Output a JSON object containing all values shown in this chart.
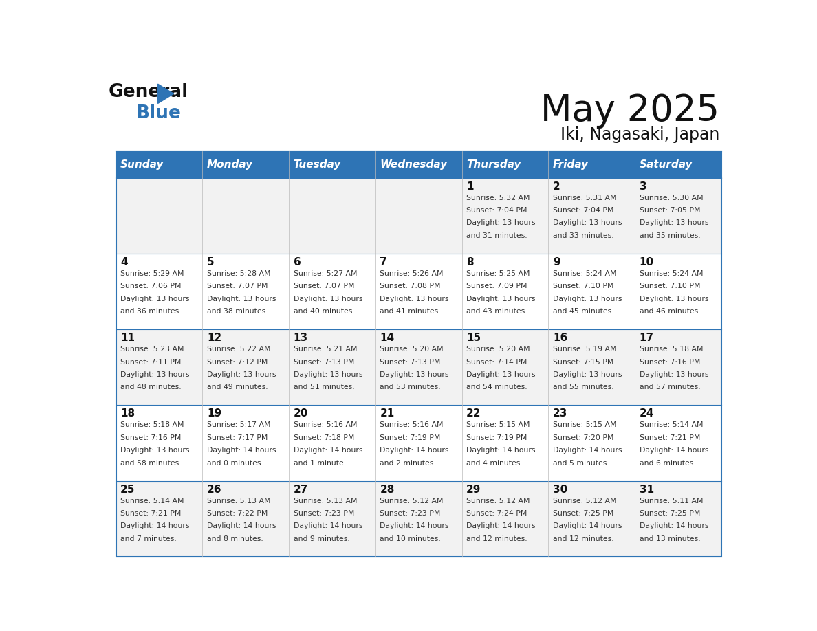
{
  "title": "May 2025",
  "subtitle": "Iki, Nagasaki, Japan",
  "header_bg": "#2E74B5",
  "header_text_color": "#FFFFFF",
  "cell_bg_even": "#F2F2F2",
  "cell_bg_odd": "#FFFFFF",
  "border_color": "#2E74B5",
  "row_line_color": "#2E74B5",
  "text_color": "#333333",
  "days_of_week": [
    "Sunday",
    "Monday",
    "Tuesday",
    "Wednesday",
    "Thursday",
    "Friday",
    "Saturday"
  ],
  "calendar_data": [
    [
      {
        "day": "",
        "sunrise": "",
        "sunset": "",
        "daylight": ""
      },
      {
        "day": "",
        "sunrise": "",
        "sunset": "",
        "daylight": ""
      },
      {
        "day": "",
        "sunrise": "",
        "sunset": "",
        "daylight": ""
      },
      {
        "day": "",
        "sunrise": "",
        "sunset": "",
        "daylight": ""
      },
      {
        "day": "1",
        "sunrise": "Sunrise: 5:32 AM",
        "sunset": "Sunset: 7:04 PM",
        "daylight": "Daylight: 13 hours\nand 31 minutes."
      },
      {
        "day": "2",
        "sunrise": "Sunrise: 5:31 AM",
        "sunset": "Sunset: 7:04 PM",
        "daylight": "Daylight: 13 hours\nand 33 minutes."
      },
      {
        "day": "3",
        "sunrise": "Sunrise: 5:30 AM",
        "sunset": "Sunset: 7:05 PM",
        "daylight": "Daylight: 13 hours\nand 35 minutes."
      }
    ],
    [
      {
        "day": "4",
        "sunrise": "Sunrise: 5:29 AM",
        "sunset": "Sunset: 7:06 PM",
        "daylight": "Daylight: 13 hours\nand 36 minutes."
      },
      {
        "day": "5",
        "sunrise": "Sunrise: 5:28 AM",
        "sunset": "Sunset: 7:07 PM",
        "daylight": "Daylight: 13 hours\nand 38 minutes."
      },
      {
        "day": "6",
        "sunrise": "Sunrise: 5:27 AM",
        "sunset": "Sunset: 7:07 PM",
        "daylight": "Daylight: 13 hours\nand 40 minutes."
      },
      {
        "day": "7",
        "sunrise": "Sunrise: 5:26 AM",
        "sunset": "Sunset: 7:08 PM",
        "daylight": "Daylight: 13 hours\nand 41 minutes."
      },
      {
        "day": "8",
        "sunrise": "Sunrise: 5:25 AM",
        "sunset": "Sunset: 7:09 PM",
        "daylight": "Daylight: 13 hours\nand 43 minutes."
      },
      {
        "day": "9",
        "sunrise": "Sunrise: 5:24 AM",
        "sunset": "Sunset: 7:10 PM",
        "daylight": "Daylight: 13 hours\nand 45 minutes."
      },
      {
        "day": "10",
        "sunrise": "Sunrise: 5:24 AM",
        "sunset": "Sunset: 7:10 PM",
        "daylight": "Daylight: 13 hours\nand 46 minutes."
      }
    ],
    [
      {
        "day": "11",
        "sunrise": "Sunrise: 5:23 AM",
        "sunset": "Sunset: 7:11 PM",
        "daylight": "Daylight: 13 hours\nand 48 minutes."
      },
      {
        "day": "12",
        "sunrise": "Sunrise: 5:22 AM",
        "sunset": "Sunset: 7:12 PM",
        "daylight": "Daylight: 13 hours\nand 49 minutes."
      },
      {
        "day": "13",
        "sunrise": "Sunrise: 5:21 AM",
        "sunset": "Sunset: 7:13 PM",
        "daylight": "Daylight: 13 hours\nand 51 minutes."
      },
      {
        "day": "14",
        "sunrise": "Sunrise: 5:20 AM",
        "sunset": "Sunset: 7:13 PM",
        "daylight": "Daylight: 13 hours\nand 53 minutes."
      },
      {
        "day": "15",
        "sunrise": "Sunrise: 5:20 AM",
        "sunset": "Sunset: 7:14 PM",
        "daylight": "Daylight: 13 hours\nand 54 minutes."
      },
      {
        "day": "16",
        "sunrise": "Sunrise: 5:19 AM",
        "sunset": "Sunset: 7:15 PM",
        "daylight": "Daylight: 13 hours\nand 55 minutes."
      },
      {
        "day": "17",
        "sunrise": "Sunrise: 5:18 AM",
        "sunset": "Sunset: 7:16 PM",
        "daylight": "Daylight: 13 hours\nand 57 minutes."
      }
    ],
    [
      {
        "day": "18",
        "sunrise": "Sunrise: 5:18 AM",
        "sunset": "Sunset: 7:16 PM",
        "daylight": "Daylight: 13 hours\nand 58 minutes."
      },
      {
        "day": "19",
        "sunrise": "Sunrise: 5:17 AM",
        "sunset": "Sunset: 7:17 PM",
        "daylight": "Daylight: 14 hours\nand 0 minutes."
      },
      {
        "day": "20",
        "sunrise": "Sunrise: 5:16 AM",
        "sunset": "Sunset: 7:18 PM",
        "daylight": "Daylight: 14 hours\nand 1 minute."
      },
      {
        "day": "21",
        "sunrise": "Sunrise: 5:16 AM",
        "sunset": "Sunset: 7:19 PM",
        "daylight": "Daylight: 14 hours\nand 2 minutes."
      },
      {
        "day": "22",
        "sunrise": "Sunrise: 5:15 AM",
        "sunset": "Sunset: 7:19 PM",
        "daylight": "Daylight: 14 hours\nand 4 minutes."
      },
      {
        "day": "23",
        "sunrise": "Sunrise: 5:15 AM",
        "sunset": "Sunset: 7:20 PM",
        "daylight": "Daylight: 14 hours\nand 5 minutes."
      },
      {
        "day": "24",
        "sunrise": "Sunrise: 5:14 AM",
        "sunset": "Sunset: 7:21 PM",
        "daylight": "Daylight: 14 hours\nand 6 minutes."
      }
    ],
    [
      {
        "day": "25",
        "sunrise": "Sunrise: 5:14 AM",
        "sunset": "Sunset: 7:21 PM",
        "daylight": "Daylight: 14 hours\nand 7 minutes."
      },
      {
        "day": "26",
        "sunrise": "Sunrise: 5:13 AM",
        "sunset": "Sunset: 7:22 PM",
        "daylight": "Daylight: 14 hours\nand 8 minutes."
      },
      {
        "day": "27",
        "sunrise": "Sunrise: 5:13 AM",
        "sunset": "Sunset: 7:23 PM",
        "daylight": "Daylight: 14 hours\nand 9 minutes."
      },
      {
        "day": "28",
        "sunrise": "Sunrise: 5:12 AM",
        "sunset": "Sunset: 7:23 PM",
        "daylight": "Daylight: 14 hours\nand 10 minutes."
      },
      {
        "day": "29",
        "sunrise": "Sunrise: 5:12 AM",
        "sunset": "Sunset: 7:24 PM",
        "daylight": "Daylight: 14 hours\nand 12 minutes."
      },
      {
        "day": "30",
        "sunrise": "Sunrise: 5:12 AM",
        "sunset": "Sunset: 7:25 PM",
        "daylight": "Daylight: 14 hours\nand 12 minutes."
      },
      {
        "day": "31",
        "sunrise": "Sunrise: 5:11 AM",
        "sunset": "Sunset: 7:25 PM",
        "daylight": "Daylight: 14 hours\nand 13 minutes."
      }
    ]
  ]
}
